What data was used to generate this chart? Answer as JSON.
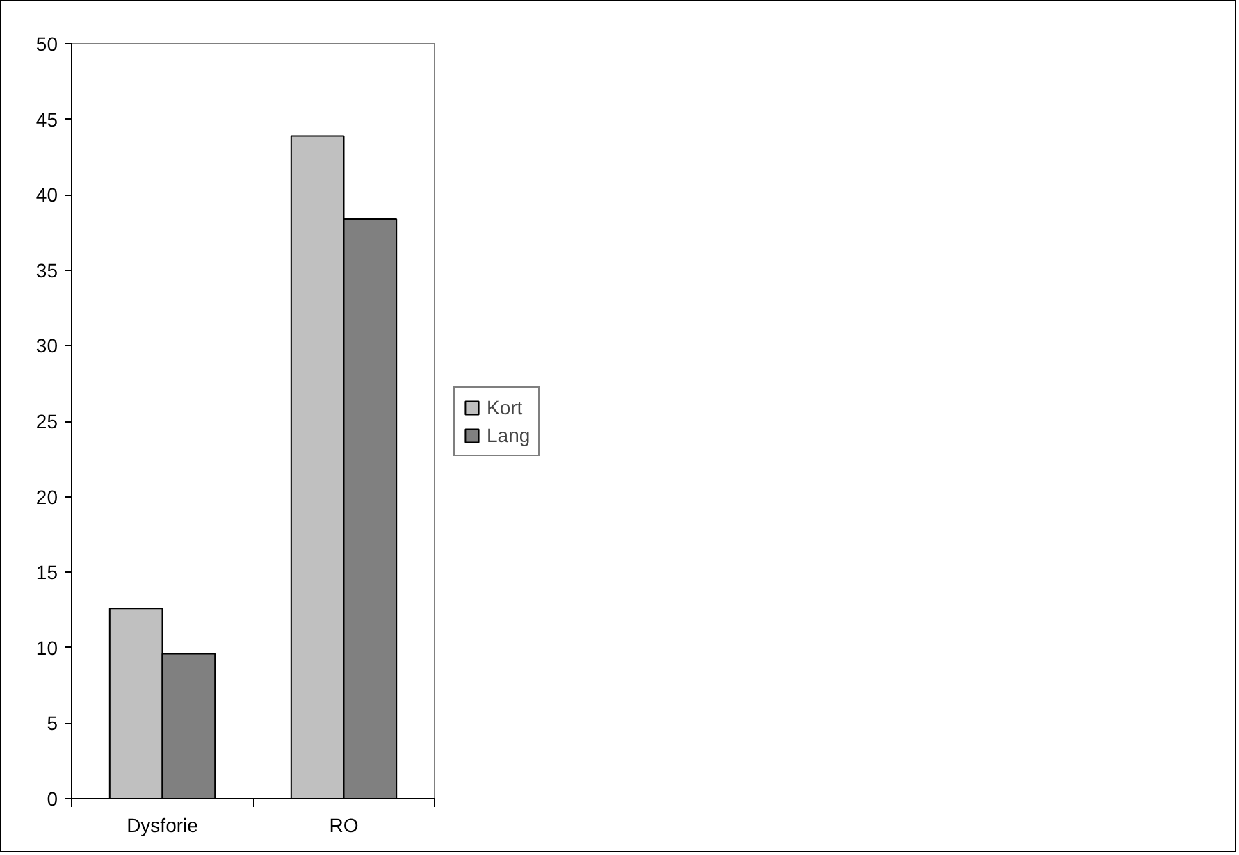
{
  "chart_data": {
    "type": "bar",
    "categories": [
      "Dysforie",
      "RO"
    ],
    "series": [
      {
        "name": "Kort",
        "color": "#c0c0c0",
        "values": [
          12.6,
          43.9
        ]
      },
      {
        "name": "Lang",
        "color": "#808080",
        "values": [
          9.6,
          38.4
        ]
      }
    ],
    "ylim": [
      0,
      50
    ],
    "yticks": [
      0,
      5,
      10,
      15,
      20,
      25,
      30,
      35,
      40,
      45,
      50
    ],
    "grid": false,
    "legend": "right"
  }
}
